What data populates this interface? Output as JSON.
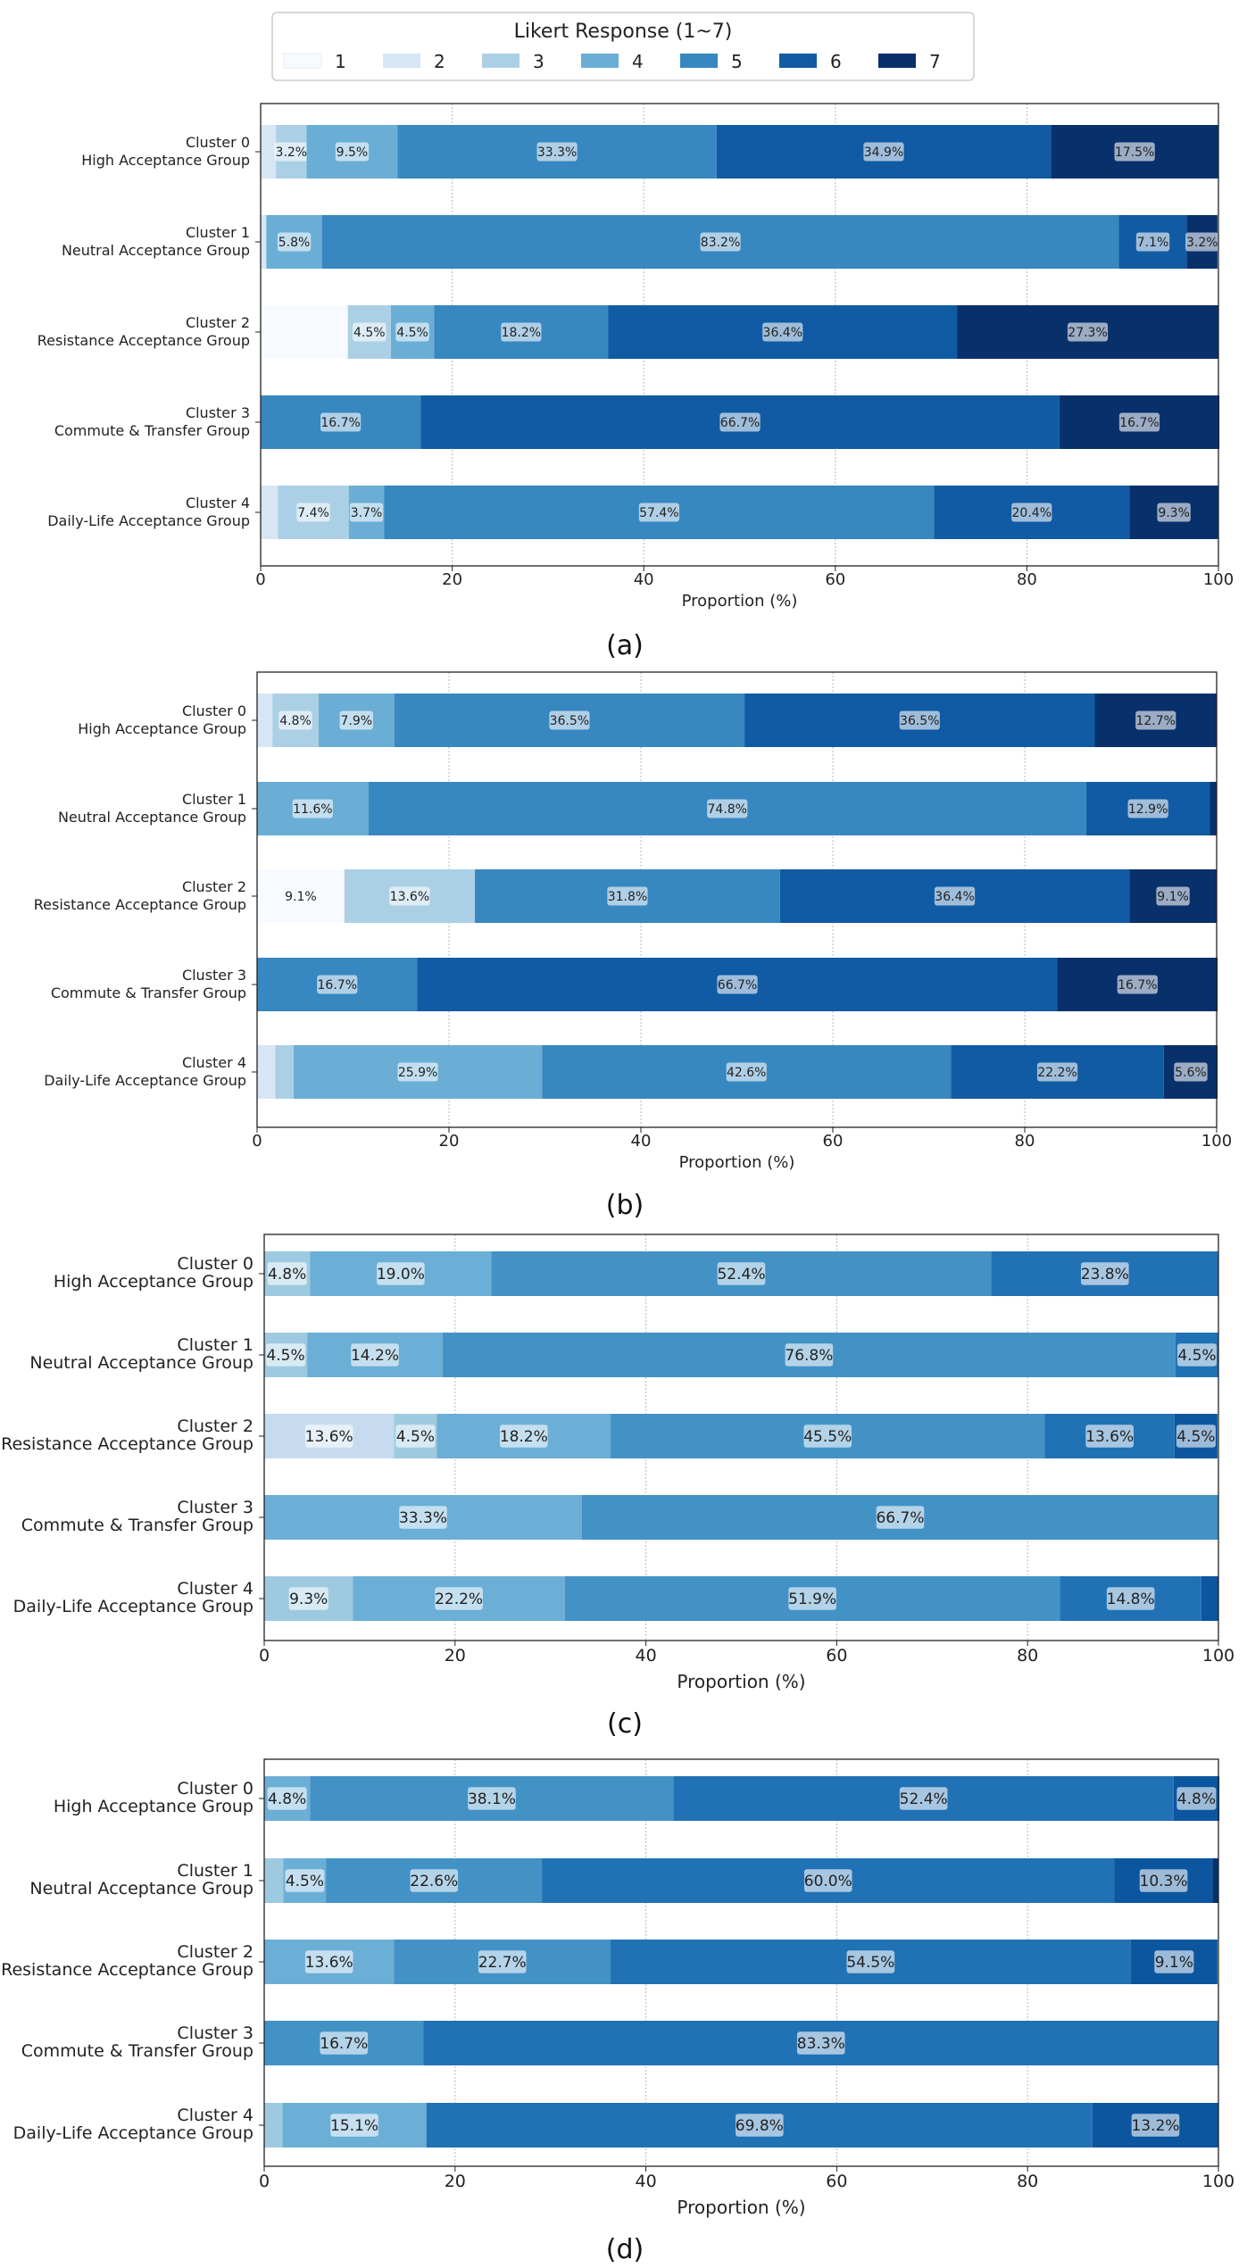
{
  "legend": {
    "title": "Likert Response (1~7)",
    "items": [
      {
        "label": "1",
        "color": "#f7fbff"
      },
      {
        "label": "2",
        "color": "#d6e6f4"
      },
      {
        "label": "3",
        "color": "#abd0e6"
      },
      {
        "label": "4",
        "color": "#6aaed6"
      },
      {
        "label": "5",
        "color": "#3787c0"
      },
      {
        "label": "6",
        "color": "#105ba4"
      },
      {
        "label": "7",
        "color": "#08306b"
      }
    ]
  },
  "chart_data": [
    {
      "type": "bar",
      "orientation": "horizontal",
      "stacked": true,
      "caption": "(a)",
      "xlabel": "Proportion (%)",
      "xlim": [
        0,
        100
      ],
      "xticks": [
        "0",
        "20",
        "40",
        "60",
        "80",
        "100"
      ],
      "grid": "x",
      "categories": [
        [
          "Cluster 0",
          "High Acceptance Group"
        ],
        [
          "Cluster 1",
          "Neutral Acceptance Group"
        ],
        [
          "Cluster 2",
          "Resistance Acceptance Group"
        ],
        [
          "Cluster 3",
          "Commute & Transfer Group"
        ],
        [
          "Cluster 4",
          "Daily-Life Acceptance Group"
        ]
      ],
      "series_colors": [
        "#f7fbff",
        "#d6e6f4",
        "#abd0e6",
        "#6aaed6",
        "#3787c0",
        "#105ba4",
        "#08306b"
      ],
      "series": [
        {
          "name": "1",
          "values": [
            0.0,
            0.0,
            9.1,
            0.0,
            0.0
          ]
        },
        {
          "name": "2",
          "values": [
            1.6,
            0.6,
            0.0,
            0.0,
            1.8
          ]
        },
        {
          "name": "3",
          "values": [
            3.2,
            0.0,
            4.5,
            0.0,
            7.4
          ]
        },
        {
          "name": "4",
          "values": [
            9.5,
            5.8,
            4.5,
            0.0,
            3.7
          ]
        },
        {
          "name": "5",
          "values": [
            33.3,
            83.2,
            18.2,
            16.7,
            57.4
          ]
        },
        {
          "name": "6",
          "values": [
            34.9,
            7.1,
            36.4,
            66.7,
            20.4
          ]
        },
        {
          "name": "7",
          "values": [
            17.5,
            3.2,
            27.3,
            16.7,
            9.3
          ]
        }
      ],
      "labels": [
        [
          "",
          "",
          "",
          "",
          ""
        ],
        [
          "",
          "",
          "",
          "",
          ""
        ],
        [
          "3.2%",
          "",
          "4.5%",
          "",
          "7.4%"
        ],
        [
          "9.5%",
          "5.8%",
          "4.5%",
          "",
          "3.7%"
        ],
        [
          "33.3%",
          "83.2%",
          "18.2%",
          "16.7%",
          "57.4%"
        ],
        [
          "34.9%",
          "7.1%",
          "36.4%",
          "66.7%",
          "20.4%"
        ],
        [
          "17.5%",
          "3.2%",
          "27.3%",
          "16.7%",
          "9.3%"
        ]
      ]
    },
    {
      "type": "bar",
      "orientation": "horizontal",
      "stacked": true,
      "caption": "(b)",
      "xlabel": "Proportion (%)",
      "xlim": [
        0,
        100
      ],
      "xticks": [
        "0",
        "20",
        "40",
        "60",
        "80",
        "100"
      ],
      "grid": "x",
      "categories": [
        [
          "Cluster 0",
          "High Acceptance Group"
        ],
        [
          "Cluster 1",
          "Neutral Acceptance Group"
        ],
        [
          "Cluster 2",
          "Resistance Acceptance Group"
        ],
        [
          "Cluster 3",
          "Commute & Transfer Group"
        ],
        [
          "Cluster 4",
          "Daily-Life Acceptance Group"
        ]
      ],
      "series_colors": [
        "#f7fbff",
        "#d6e6f4",
        "#abd0e6",
        "#6aaed6",
        "#3787c0",
        "#105ba4",
        "#08306b"
      ],
      "series": [
        {
          "name": "1",
          "values": [
            0.0,
            0.0,
            9.1,
            0.0,
            0.0
          ]
        },
        {
          "name": "2",
          "values": [
            1.6,
            0.0,
            0.0,
            0.0,
            1.9
          ]
        },
        {
          "name": "3",
          "values": [
            4.8,
            0.0,
            13.6,
            0.0,
            1.9
          ]
        },
        {
          "name": "4",
          "values": [
            7.9,
            11.6,
            0.0,
            0.0,
            25.9
          ]
        },
        {
          "name": "5",
          "values": [
            36.5,
            74.8,
            31.8,
            16.7,
            42.6
          ]
        },
        {
          "name": "6",
          "values": [
            36.5,
            12.9,
            36.4,
            66.7,
            22.2
          ]
        },
        {
          "name": "7",
          "values": [
            12.7,
            0.7,
            9.1,
            16.7,
            5.6
          ]
        }
      ],
      "labels": [
        [
          "",
          "",
          "",
          "",
          ""
        ],
        [
          "",
          "",
          "",
          "",
          ""
        ],
        [
          "4.8%",
          "",
          "13.6%",
          "",
          ""
        ],
        [
          "7.9%",
          "11.6%",
          "",
          "",
          "25.9%"
        ],
        [
          "36.5%",
          "74.8%",
          "31.8%",
          "16.7%",
          "42.6%"
        ],
        [
          "36.5%",
          "12.9%",
          "36.4%",
          "66.7%",
          "22.2%"
        ],
        [
          "12.7%",
          "",
          "9.1%",
          "16.7%",
          "5.6%"
        ]
      ],
      "extra_labels": [
        {
          "series": 0,
          "category": 2,
          "text": "9.1%"
        }
      ]
    },
    {
      "type": "bar",
      "orientation": "horizontal",
      "stacked": true,
      "caption": "(c)",
      "xlabel": "Proportion (%)",
      "xlim": [
        0,
        100
      ],
      "xticks": [
        "0",
        "20",
        "40",
        "60",
        "80",
        "100"
      ],
      "grid": "x",
      "categories": [
        [
          "Cluster 0",
          "High Acceptance Group"
        ],
        [
          "Cluster 1",
          "Neutral Acceptance Group"
        ],
        [
          "Cluster 2",
          "Resistance Acceptance Group"
        ],
        [
          "Cluster 3",
          "Commute & Transfer Group"
        ],
        [
          "Cluster 4",
          "Daily-Life Acceptance Group"
        ]
      ],
      "series_colors": [
        "#c6dbef",
        "#9ecae1",
        "#6baed6",
        "#4292c6",
        "#2171b5",
        "#0c56a0",
        "#08306b"
      ],
      "series": [
        {
          "name": "2",
          "values": [
            0.0,
            0.0,
            13.6,
            0.0,
            0.0
          ]
        },
        {
          "name": "3",
          "values": [
            4.8,
            4.5,
            4.5,
            0.0,
            9.3
          ]
        },
        {
          "name": "4",
          "values": [
            19.0,
            14.2,
            18.2,
            33.3,
            22.2
          ]
        },
        {
          "name": "5",
          "values": [
            52.4,
            76.8,
            45.5,
            66.7,
            51.9
          ]
        },
        {
          "name": "6",
          "values": [
            23.8,
            4.5,
            13.6,
            0.0,
            14.8
          ]
        },
        {
          "name": "7",
          "values": [
            0.0,
            0.0,
            4.5,
            0.0,
            1.8
          ]
        }
      ],
      "labels": [
        [
          "",
          "",
          "13.6%",
          "",
          ""
        ],
        [
          "4.8%",
          "4.5%",
          "4.5%",
          "",
          "9.3%"
        ],
        [
          "19.0%",
          "14.2%",
          "18.2%",
          "33.3%",
          "22.2%"
        ],
        [
          "52.4%",
          "76.8%",
          "45.5%",
          "66.7%",
          "51.9%"
        ],
        [
          "23.8%",
          "4.5%",
          "13.6%",
          "",
          "14.8%"
        ],
        [
          "",
          "",
          "4.5%",
          "",
          ""
        ]
      ]
    },
    {
      "type": "bar",
      "orientation": "horizontal",
      "stacked": true,
      "caption": "(d)",
      "xlabel": "Proportion (%)",
      "xlim": [
        0,
        100
      ],
      "xticks": [
        "0",
        "20",
        "40",
        "60",
        "80",
        "100"
      ],
      "grid": "x",
      "categories": [
        [
          "Cluster 0",
          "High Acceptance Group"
        ],
        [
          "Cluster 1",
          "Neutral Acceptance Group"
        ],
        [
          "Cluster 2",
          "Resistance Acceptance Group"
        ],
        [
          "Cluster 3",
          "Commute & Transfer Group"
        ],
        [
          "Cluster 4",
          "Daily-Life Acceptance Group"
        ]
      ],
      "series_colors": [
        "#9ecae1",
        "#6baed6",
        "#4292c6",
        "#2171b5",
        "#0c56a0",
        "#08306b"
      ],
      "series": [
        {
          "name": "2",
          "values": [
            0.0,
            2.0,
            0.0,
            0.0,
            1.9
          ]
        },
        {
          "name": "3",
          "values": [
            4.8,
            4.5,
            13.6,
            0.0,
            15.1
          ]
        },
        {
          "name": "4",
          "values": [
            38.1,
            22.6,
            22.7,
            16.7,
            0.0
          ]
        },
        {
          "name": "5",
          "values": [
            52.4,
            60.0,
            54.5,
            83.3,
            69.8
          ]
        },
        {
          "name": "6",
          "values": [
            4.8,
            10.3,
            9.1,
            0.0,
            13.2
          ]
        },
        {
          "name": "7",
          "values": [
            0.0,
            0.6,
            0.0,
            0.0,
            0.0
          ]
        }
      ],
      "labels": [
        [
          "",
          "",
          "",
          "",
          ""
        ],
        [
          "4.8%",
          "4.5%",
          "13.6%",
          "",
          "15.1%"
        ],
        [
          "38.1%",
          "22.6%",
          "22.7%",
          "16.7%",
          ""
        ],
        [
          "52.4%",
          "60.0%",
          "54.5%",
          "83.3%",
          "69.8%"
        ],
        [
          "4.8%",
          "10.3%",
          "9.1%",
          "",
          "13.2%"
        ],
        [
          "",
          "",
          "",
          "",
          ""
        ]
      ]
    }
  ]
}
